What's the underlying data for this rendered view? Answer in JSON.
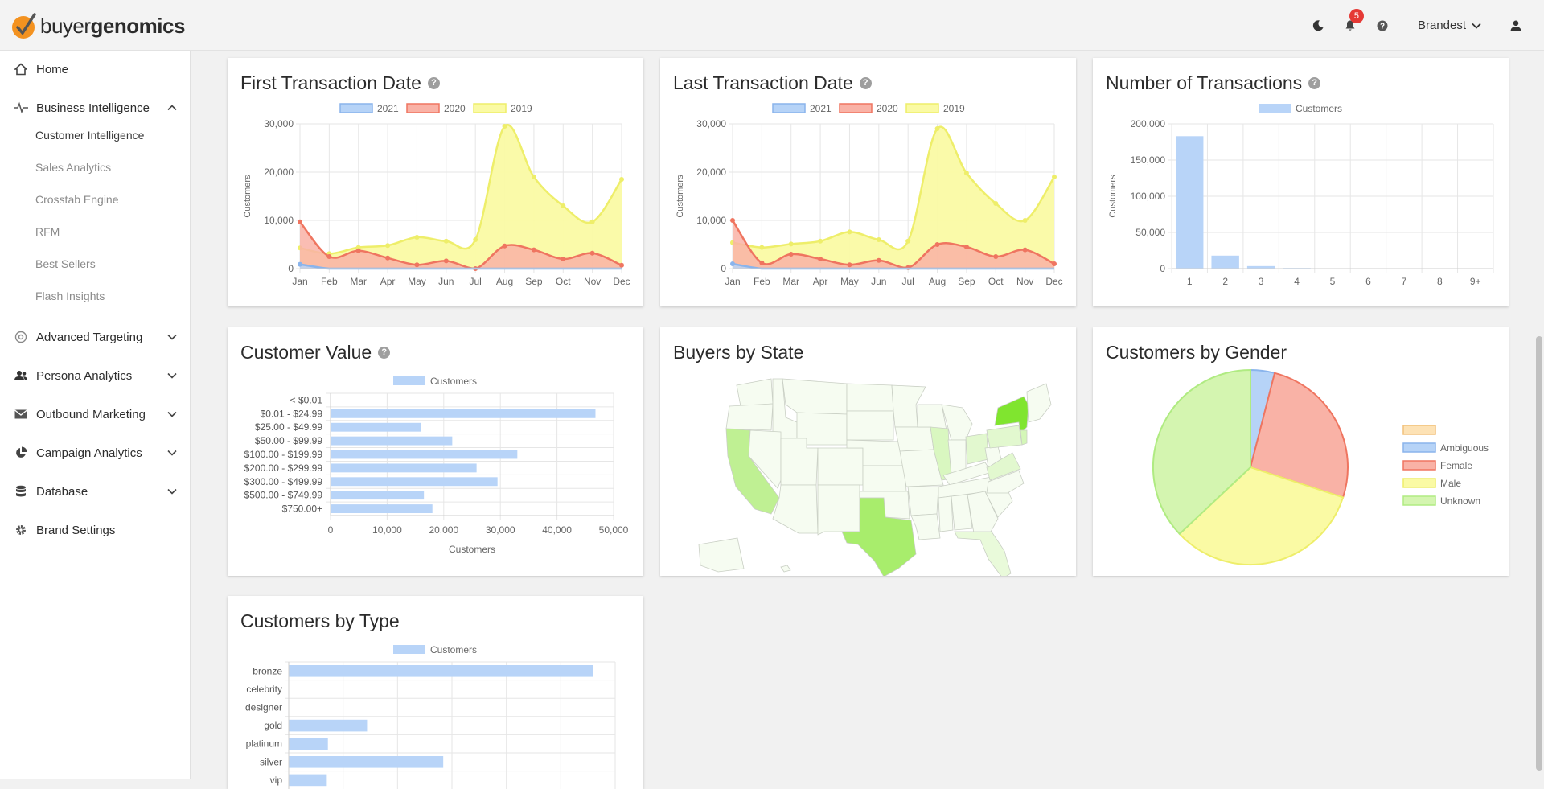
{
  "app": {
    "logo_prefix": "buyer",
    "logo_suffix": "genomics"
  },
  "header": {
    "notifications_count": "5",
    "brand_name": "Brandest"
  },
  "sidebar": {
    "home": "Home",
    "business_intelligence": "Business Intelligence",
    "bi_items": [
      "Customer Intelligence",
      "Sales Analytics",
      "Crosstab Engine",
      "RFM",
      "Best Sellers",
      "Flash Insights"
    ],
    "advanced_targeting": "Advanced Targeting",
    "persona_analytics": "Persona Analytics",
    "outbound_marketing": "Outbound Marketing",
    "campaign_analytics": "Campaign Analytics",
    "database": "Database",
    "brand_settings": "Brand Settings"
  },
  "colors": {
    "c2021": "#b6d3f7",
    "c2021_line": "#8ab4ec",
    "c2020": "#f9b2a6",
    "c2020_line": "#ef7560",
    "c2019": "#fafaa4",
    "c2019_line": "#eeee6a",
    "bar": "#b8d4f8",
    "map_light": "#f5fcef",
    "map_mid": "#d4f7b8",
    "map_strong": "#a8ed6c",
    "map_max": "#80e52f"
  },
  "cards": {
    "first_txn": {
      "title": "First Transaction Date",
      "chart_data": {
        "type": "area",
        "ylabel": "Customers",
        "categories": [
          "Jan",
          "Feb",
          "Mar",
          "Apr",
          "May",
          "Jun",
          "Jul",
          "Aug",
          "Sep",
          "Oct",
          "Nov",
          "Dec"
        ],
        "yticks": [
          "0",
          "10,000",
          "20,000",
          "30,000"
        ],
        "ylim": [
          0,
          30000
        ],
        "series": [
          {
            "name": "2021",
            "values": [
              900,
              0,
              0,
              0,
              0,
              0,
              0,
              0,
              0,
              0,
              0,
              0
            ]
          },
          {
            "name": "2020",
            "values": [
              9700,
              2500,
              3700,
              2200,
              800,
              1600,
              0,
              4700,
              3900,
              2000,
              3200,
              700
            ]
          },
          {
            "name": "2019",
            "values": [
              4300,
              3100,
              4400,
              4800,
              6500,
              5700,
              6000,
              29500,
              19000,
              13000,
              9700,
              18500
            ]
          }
        ]
      }
    },
    "last_txn": {
      "title": "Last Transaction Date",
      "chart_data": {
        "type": "area",
        "ylabel": "Customers",
        "categories": [
          "Jan",
          "Feb",
          "Mar",
          "Apr",
          "May",
          "Jun",
          "Jul",
          "Aug",
          "Sep",
          "Oct",
          "Nov",
          "Dec"
        ],
        "yticks": [
          "0",
          "10,000",
          "20,000",
          "30,000"
        ],
        "ylim": [
          0,
          30000
        ],
        "series": [
          {
            "name": "2021",
            "values": [
              1000,
              0,
              0,
              0,
              0,
              0,
              0,
              0,
              0,
              0,
              0,
              0
            ]
          },
          {
            "name": "2020",
            "values": [
              10000,
              1200,
              3000,
              2000,
              800,
              1700,
              200,
              5000,
              4500,
              2500,
              3900,
              1000
            ]
          },
          {
            "name": "2019",
            "values": [
              5400,
              4400,
              5100,
              5700,
              7600,
              6000,
              5700,
              29000,
              19800,
              13500,
              10000,
              19000
            ]
          }
        ]
      }
    },
    "num_txn": {
      "title": "Number of Transactions",
      "chart_data": {
        "type": "bar",
        "ylabel": "Customers",
        "categories": [
          "1",
          "2",
          "3",
          "4",
          "5",
          "6",
          "7",
          "8",
          "9+"
        ],
        "yticks": [
          "0",
          "50,000",
          "100,000",
          "150,000",
          "200,000"
        ],
        "ylim": [
          0,
          200000
        ],
        "series": [
          {
            "name": "Customers",
            "values": [
              183000,
              18000,
              3500,
              900,
              300,
              150,
              80,
              40,
              60
            ]
          }
        ]
      }
    },
    "cust_value": {
      "title": "Customer Value",
      "chart_data": {
        "type": "bar",
        "xlabel": "Customers",
        "categories": [
          "< $0.01",
          "$0.01 - $24.99",
          "$25.00 - $49.99",
          "$50.00 - $99.99",
          "$100.00 - $199.99",
          "$200.00 - $299.99",
          "$300.00 - $499.99",
          "$500.00 - $749.99",
          "$750.00+"
        ],
        "xticks": [
          "0",
          "10,000",
          "20,000",
          "30,000",
          "40,000",
          "50,000"
        ],
        "xlim": [
          0,
          50000
        ],
        "series": [
          {
            "name": "Customers",
            "values": [
              0,
              46800,
              16000,
              21500,
              33000,
              25800,
              29500,
              16500,
              18000
            ]
          }
        ]
      }
    },
    "buyers_state": {
      "title": "Buyers by State"
    },
    "gender": {
      "title": "Customers by Gender",
      "chart_data": {
        "type": "pie",
        "labels": [
          "",
          "Ambiguous",
          "Female",
          "Male",
          "Unknown"
        ],
        "values": [
          0,
          4,
          26,
          33,
          37
        ],
        "colors": [
          "#fde2b5",
          "#b6d3f7",
          "#f9b2a6",
          "#fafaa4",
          "#d4f5b0"
        ],
        "borders": [
          "#f2c17c",
          "#8ab4ec",
          "#ef7560",
          "#eeee6a",
          "#b0eb82"
        ]
      }
    },
    "cust_type": {
      "title": "Customers by Type",
      "chart_data": {
        "type": "bar",
        "categories": [
          "bronze",
          "celebrity",
          "designer",
          "gold",
          "platinum",
          "silver",
          "vip"
        ],
        "series": [
          {
            "name": "Customers",
            "values": [
              28000,
              0,
              0,
              7200,
              3600,
              14200,
              3500
            ]
          }
        ],
        "xlim": [
          0,
          30000
        ]
      }
    }
  }
}
